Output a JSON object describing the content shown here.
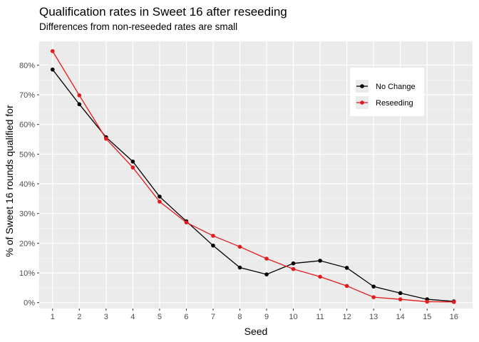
{
  "chart_data": {
    "type": "line",
    "title": "Qualification rates in Sweet 16 after reseeding",
    "subtitle": "Differences from non-reseeded rates are small",
    "xlabel": "Seed",
    "ylabel": "% of Sweet 16 rounds qualified for",
    "x": [
      1,
      2,
      3,
      4,
      5,
      6,
      7,
      8,
      9,
      10,
      11,
      12,
      13,
      14,
      15,
      16
    ],
    "xlim": [
      0.5,
      16.7
    ],
    "ylim": [
      -0.02,
      0.88
    ],
    "y_ticks": [
      0,
      0.1,
      0.2,
      0.3,
      0.4,
      0.5,
      0.6,
      0.7,
      0.8
    ],
    "y_tick_labels": [
      "0%",
      "10%",
      "20%",
      "30%",
      "40%",
      "50%",
      "60%",
      "70%",
      "80%"
    ],
    "x_tick_labels": [
      "1",
      "2",
      "3",
      "4",
      "5",
      "6",
      "7",
      "8",
      "9",
      "10",
      "11",
      "12",
      "13",
      "14",
      "15",
      "16"
    ],
    "grid": true,
    "legend_position": "top-right",
    "series": [
      {
        "name": "No Change",
        "color": "#000000",
        "values": [
          0.785,
          0.668,
          0.557,
          0.475,
          0.357,
          0.274,
          0.192,
          0.118,
          0.095,
          0.132,
          0.141,
          0.117,
          0.054,
          0.032,
          0.011,
          0.004
        ]
      },
      {
        "name": "Reseeding",
        "color": "#e41a1c",
        "values": [
          0.847,
          0.698,
          0.552,
          0.455,
          0.34,
          0.27,
          0.225,
          0.188,
          0.148,
          0.113,
          0.087,
          0.056,
          0.018,
          0.011,
          0.003,
          0.002
        ]
      }
    ]
  }
}
